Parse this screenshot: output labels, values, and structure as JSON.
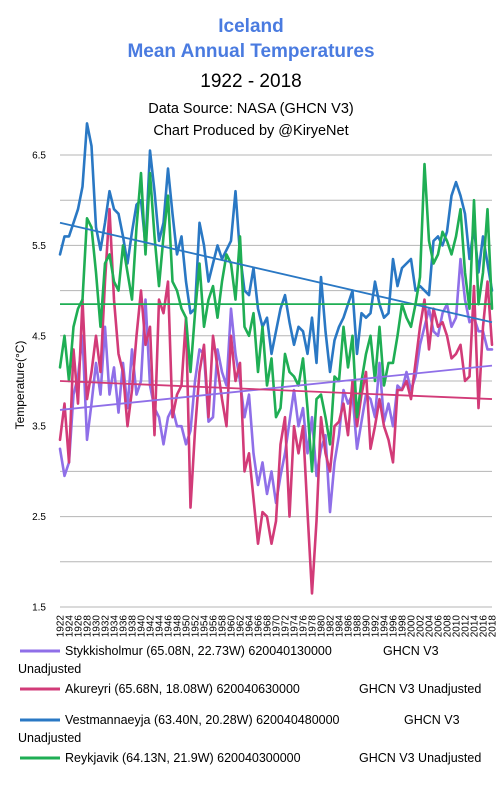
{
  "chart_data": {
    "type": "line",
    "title": "Iceland",
    "subtitle": "Mean Annual Temperatures",
    "date_range": "1922 - 2018",
    "source_line": "Data Source: NASA (GHCN V3)",
    "credit_line": "Chart Produced by @KiryeNet",
    "ylabel": "Temperature(°C)",
    "xlabel": "",
    "ylim": [
      1.5,
      6.5
    ],
    "yticks": [
      "1.5",
      "2.5",
      "3.5",
      "4.5",
      "5.5",
      "6.5"
    ],
    "grid": true,
    "legend_position": "bottom",
    "x": [
      1922,
      1923,
      1924,
      1925,
      1926,
      1927,
      1928,
      1929,
      1930,
      1931,
      1932,
      1933,
      1934,
      1935,
      1936,
      1937,
      1938,
      1939,
      1940,
      1941,
      1942,
      1943,
      1944,
      1945,
      1946,
      1947,
      1948,
      1949,
      1950,
      1951,
      1952,
      1953,
      1954,
      1955,
      1956,
      1957,
      1958,
      1959,
      1960,
      1961,
      1962,
      1963,
      1964,
      1965,
      1966,
      1967,
      1968,
      1969,
      1970,
      1971,
      1972,
      1973,
      1974,
      1975,
      1976,
      1977,
      1978,
      1979,
      1980,
      1981,
      1982,
      1983,
      1984,
      1985,
      1986,
      1987,
      1988,
      1989,
      1990,
      1991,
      1992,
      1993,
      1994,
      1995,
      1996,
      1997,
      1998,
      1999,
      2000,
      2001,
      2002,
      2003,
      2004,
      2005,
      2006,
      2007,
      2008,
      2009,
      2010,
      2011,
      2012,
      2013,
      2014,
      2015,
      2016,
      2017,
      2018
    ],
    "xticks": [
      "1922",
      "1926",
      "1930",
      "1934",
      "1938",
      "1942",
      "1946",
      "1950",
      "1954",
      "1958",
      "1962",
      "1966",
      "1970",
      "1974",
      "1978",
      "1982",
      "1986",
      "1990",
      "1994",
      "1998",
      "2002",
      "2006",
      "2010",
      "2014",
      "2018"
    ],
    "xticks_alt": [
      "1924",
      "1928",
      "1932",
      "1936",
      "1940",
      "1944",
      "1948",
      "1952",
      "1956",
      "1960",
      "1964",
      "1968",
      "1972",
      "1976",
      "1980",
      "1984",
      "1988",
      "1992",
      "1996",
      "2000",
      "2004",
      "2008",
      "2012",
      "2016"
    ],
    "series": [
      {
        "name": "Stykkisholmur (65.08N, 22.73W) 620040130000",
        "tag": "GHCN V3",
        "tag2": "Unadjusted",
        "color": "#8f6fe8",
        "trend": [
          3.68,
          4.17
        ],
        "values": [
          3.25,
          2.95,
          3.1,
          3.85,
          4.05,
          4.5,
          3.35,
          3.75,
          4.2,
          3.85,
          4.6,
          3.85,
          4.15,
          3.65,
          4.2,
          3.7,
          4.35,
          3.85,
          4.0,
          4.9,
          3.95,
          3.7,
          3.6,
          3.3,
          3.6,
          3.7,
          3.5,
          3.5,
          3.3,
          3.45,
          4.0,
          4.35,
          4.3,
          3.55,
          3.6,
          4.35,
          4.1,
          3.95,
          4.8,
          4.3,
          4.0,
          3.6,
          3.85,
          3.2,
          2.85,
          3.1,
          2.75,
          3.0,
          2.65,
          2.95,
          3.2,
          3.55,
          3.9,
          3.5,
          3.7,
          3.2,
          3.6,
          2.95,
          3.25,
          3.4,
          2.55,
          3.1,
          3.4,
          3.9,
          3.75,
          3.85,
          3.25,
          3.55,
          3.85,
          3.8,
          3.6,
          4.2,
          3.55,
          3.75,
          3.5,
          3.95,
          3.9,
          4.1,
          3.9,
          4.05,
          4.4,
          4.6,
          4.8,
          4.55,
          4.5,
          4.75,
          4.85,
          4.6,
          4.7,
          5.35,
          4.9,
          4.65,
          4.7,
          4.55,
          4.55,
          4.35,
          4.35
        ]
      },
      {
        "name": "Akureyri (65.68N, 18.08W) 620040630000",
        "tag": "GHCN V3 Unadjusted",
        "color": "#d23b78",
        "trend": [
          4.0,
          3.8
        ],
        "values": [
          3.35,
          3.75,
          3.1,
          4.35,
          3.75,
          4.9,
          3.8,
          4.1,
          4.5,
          4.1,
          5.1,
          5.9,
          4.9,
          4.3,
          4.1,
          3.5,
          3.9,
          4.5,
          5.0,
          4.4,
          4.6,
          3.4,
          4.9,
          4.75,
          5.1,
          3.6,
          3.85,
          3.95,
          4.7,
          2.6,
          3.45,
          4.1,
          4.4,
          3.6,
          4.5,
          4.15,
          3.8,
          3.5,
          4.5,
          4.0,
          4.2,
          3.0,
          3.2,
          2.7,
          2.2,
          2.55,
          2.5,
          2.2,
          2.45,
          3.3,
          3.6,
          2.5,
          3.5,
          3.2,
          3.5,
          2.55,
          1.65,
          2.45,
          3.6,
          3.2,
          3.0,
          3.5,
          3.55,
          3.75,
          3.4,
          4.0,
          3.5,
          3.85,
          4.1,
          3.25,
          3.5,
          3.8,
          3.5,
          3.35,
          3.1,
          3.9,
          3.9,
          4.0,
          3.8,
          4.2,
          4.6,
          4.9,
          4.35,
          4.8,
          4.6,
          4.65,
          4.5,
          4.25,
          4.3,
          4.4,
          4.0,
          4.05,
          5.05,
          3.7,
          4.6,
          5.1,
          4.4
        ]
      },
      {
        "name": "Vestmannaeyja (63.40N, 20.28W) 620040480000",
        "tag": "GHCN V3",
        "tag2": "Unadjusted",
        "color": "#2a78c4",
        "trend": [
          5.75,
          4.65
        ],
        "values": [
          5.4,
          5.6,
          5.6,
          5.75,
          5.9,
          6.15,
          6.85,
          6.6,
          5.7,
          5.45,
          5.75,
          6.1,
          5.9,
          5.85,
          5.6,
          5.3,
          5.65,
          5.95,
          6.0,
          5.5,
          6.55,
          6.1,
          5.55,
          5.75,
          6.35,
          5.85,
          5.4,
          5.6,
          5.1,
          4.75,
          4.8,
          5.75,
          5.5,
          5.1,
          5.3,
          5.5,
          5.35,
          5.45,
          5.55,
          6.1,
          5.4,
          5.0,
          4.95,
          5.25,
          4.8,
          4.6,
          4.7,
          4.3,
          4.55,
          4.8,
          4.95,
          4.65,
          4.4,
          4.6,
          4.55,
          4.3,
          4.7,
          4.2,
          5.15,
          4.55,
          4.1,
          4.45,
          4.6,
          4.7,
          4.85,
          5.0,
          4.3,
          4.75,
          4.7,
          4.75,
          5.1,
          4.85,
          4.7,
          4.75,
          5.35,
          5.05,
          5.25,
          5.3,
          5.35,
          5.0,
          5.05,
          5.0,
          4.95,
          5.55,
          5.6,
          5.5,
          5.65,
          6.05,
          6.2,
          6.05,
          5.85,
          5.35,
          5.7,
          5.2,
          5.6,
          5.3,
          5.0
        ]
      },
      {
        "name": "Reykjavik (64.13N, 21.9W) 620040300000",
        "tag": "GHCN V3 Unadjusted",
        "color": "#1fae54",
        "trend": [
          4.85,
          4.85
        ],
        "values": [
          4.15,
          4.5,
          4.0,
          4.6,
          4.8,
          4.9,
          5.8,
          5.7,
          5.2,
          4.6,
          5.3,
          5.4,
          5.1,
          5.0,
          5.5,
          5.2,
          4.9,
          5.7,
          6.3,
          5.4,
          6.3,
          5.6,
          5.05,
          5.6,
          6.05,
          5.1,
          5.0,
          4.8,
          4.7,
          4.1,
          4.75,
          5.3,
          4.6,
          4.9,
          5.05,
          4.7,
          5.1,
          5.4,
          5.3,
          4.9,
          5.6,
          4.6,
          4.5,
          4.75,
          4.1,
          4.6,
          3.95,
          4.25,
          3.6,
          3.7,
          4.3,
          4.1,
          4.05,
          3.95,
          4.25,
          3.7,
          3.0,
          3.8,
          3.85,
          3.6,
          3.3,
          4.05,
          4.0,
          4.6,
          4.15,
          4.5,
          3.6,
          4.0,
          4.3,
          4.5,
          4.0,
          4.6,
          3.95,
          4.2,
          4.2,
          4.5,
          4.85,
          4.7,
          4.6,
          4.85,
          5.15,
          6.4,
          5.55,
          5.3,
          5.4,
          5.65,
          5.55,
          5.4,
          5.6,
          5.9,
          5.2,
          4.8,
          6.0,
          4.85,
          5.2,
          5.9,
          4.8
        ]
      }
    ]
  }
}
